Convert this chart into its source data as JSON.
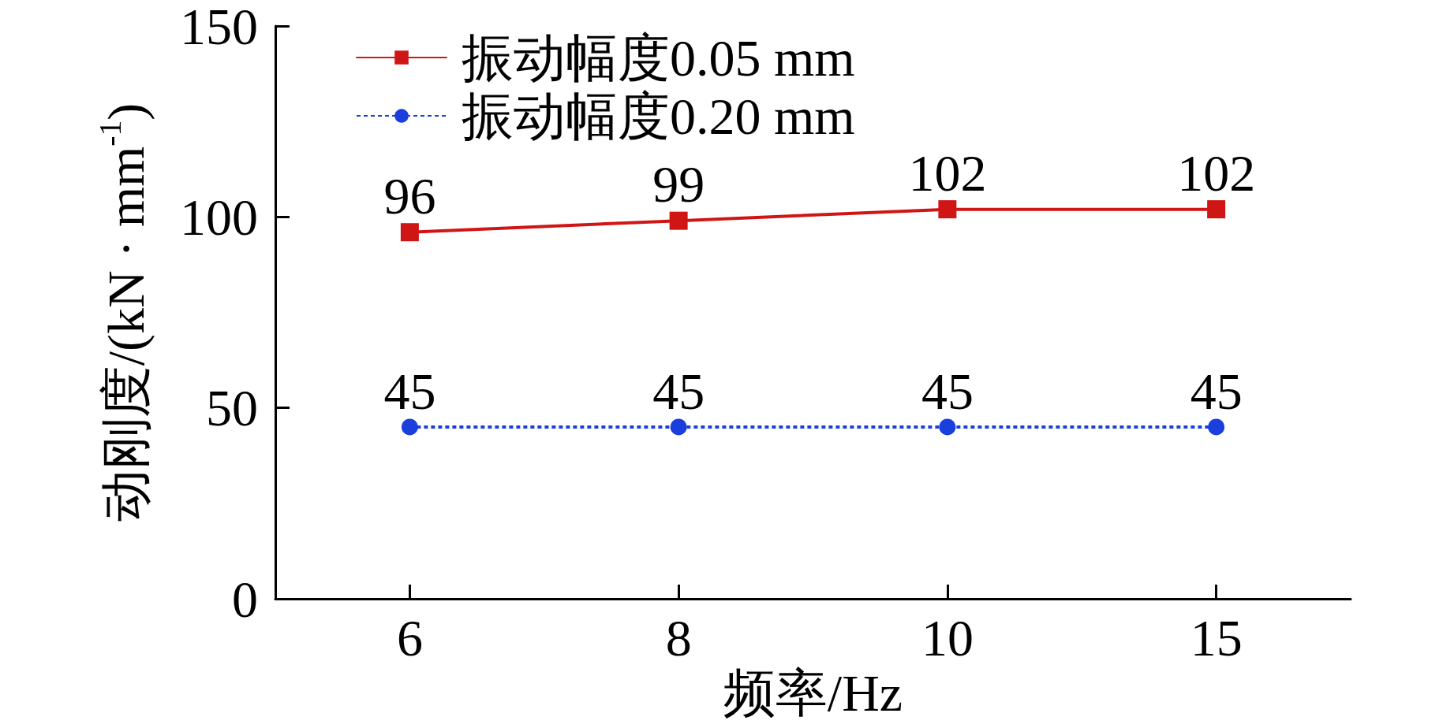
{
  "chart_data": {
    "type": "line",
    "xlabel": "频率/Hz",
    "ylabel": "动刚度/(kN · mm$^{-1}$)",
    "categories": [
      "6",
      "8",
      "10",
      "15"
    ],
    "series": [
      {
        "name": "振动幅度0.05 mm",
        "color": "#d01515",
        "values": [
          96,
          99,
          102,
          102
        ],
        "marker": "square",
        "line_style": "solid"
      },
      {
        "name": "振动幅度0.20 mm",
        "color": "#1a3fdc",
        "values": [
          45,
          45,
          45,
          45
        ],
        "marker": "circle",
        "line_style": "dotted"
      }
    ],
    "ylim": [
      0,
      150
    ],
    "yticks": [
      0,
      50,
      100,
      150
    ],
    "grid": false,
    "legend": "top left",
    "data_labels": true
  }
}
